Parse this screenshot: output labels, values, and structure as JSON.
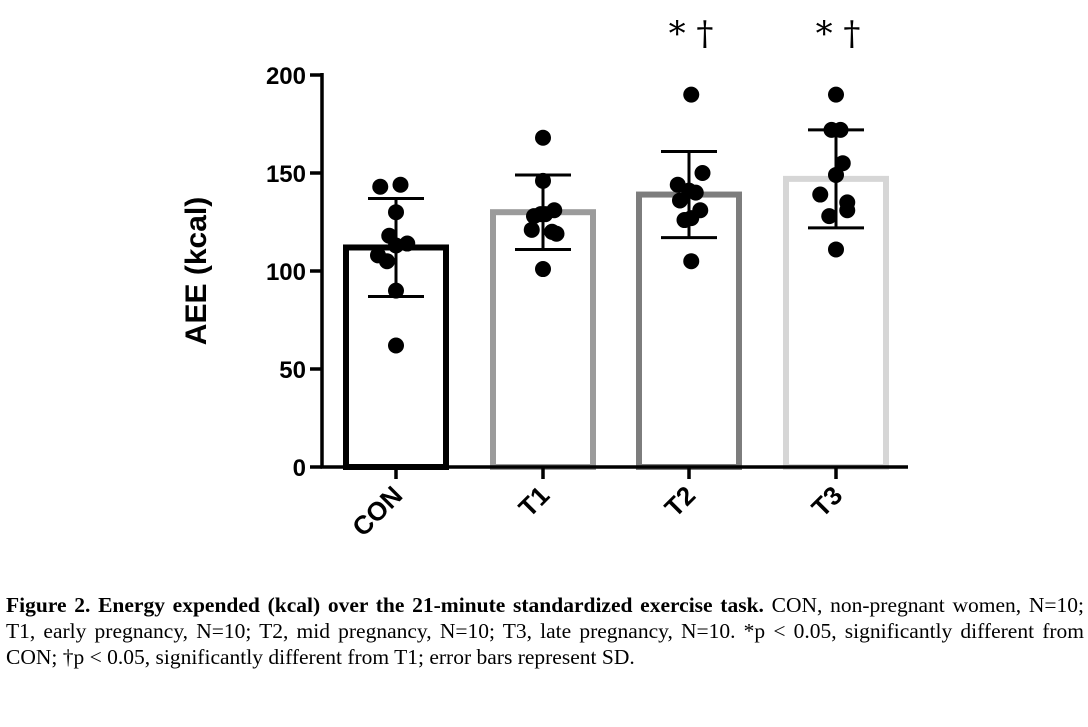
{
  "chart_data": {
    "type": "bar",
    "ylabel": "AEE (kcal)",
    "xlabel": "",
    "ylim": [
      0,
      200
    ],
    "yticks": [
      "0",
      "50",
      "100",
      "150",
      "200"
    ],
    "categories": [
      "CON",
      "T1",
      "T2",
      "T3"
    ],
    "means": [
      112,
      130,
      139,
      147
    ],
    "sd": [
      25,
      19,
      22,
      25
    ],
    "bar_colors": [
      "#000000",
      "#9b9b9b",
      "#7d7d7d",
      "#d6d6d6"
    ],
    "significance": [
      "",
      "",
      "* †",
      "* †"
    ],
    "points": [
      [
        {
          "x": -0.35,
          "y": 143
        },
        {
          "x": 0.1,
          "y": 144
        },
        {
          "x": 0.0,
          "y": 130
        },
        {
          "x": -0.15,
          "y": 118
        },
        {
          "x": 0.0,
          "y": 113
        },
        {
          "x": 0.25,
          "y": 114
        },
        {
          "x": -0.4,
          "y": 108
        },
        {
          "x": -0.2,
          "y": 105
        },
        {
          "x": 0.0,
          "y": 90
        },
        {
          "x": 0.0,
          "y": 62
        }
      ],
      [
        {
          "x": 0.0,
          "y": 168
        },
        {
          "x": 0.0,
          "y": 146
        },
        {
          "x": 0.25,
          "y": 131
        },
        {
          "x": -0.2,
          "y": 128
        },
        {
          "x": -0.05,
          "y": 129
        },
        {
          "x": 0.05,
          "y": 129
        },
        {
          "x": -0.25,
          "y": 121
        },
        {
          "x": 0.2,
          "y": 120
        },
        {
          "x": 0.3,
          "y": 119
        },
        {
          "x": 0.0,
          "y": 101
        }
      ],
      [
        {
          "x": 0.05,
          "y": 190
        },
        {
          "x": -0.25,
          "y": 144
        },
        {
          "x": 0.0,
          "y": 141
        },
        {
          "x": 0.15,
          "y": 140
        },
        {
          "x": 0.3,
          "y": 150
        },
        {
          "x": -0.2,
          "y": 136
        },
        {
          "x": 0.25,
          "y": 131
        },
        {
          "x": 0.05,
          "y": 127
        },
        {
          "x": -0.1,
          "y": 126
        },
        {
          "x": 0.05,
          "y": 105
        }
      ],
      [
        {
          "x": 0.0,
          "y": 190
        },
        {
          "x": -0.1,
          "y": 172
        },
        {
          "x": 0.1,
          "y": 172
        },
        {
          "x": 0.15,
          "y": 155
        },
        {
          "x": 0.0,
          "y": 149
        },
        {
          "x": -0.35,
          "y": 139
        },
        {
          "x": 0.25,
          "y": 135
        },
        {
          "x": 0.25,
          "y": 131
        },
        {
          "x": -0.15,
          "y": 128
        },
        {
          "x": 0.0,
          "y": 111
        }
      ]
    ]
  },
  "caption": {
    "bold": "Figure 2. Energy expended (kcal) over the 21-minute standardized exercise task.",
    "text": " CON, non-pregnant women, N=10; T1, early pregnancy, N=10; T2, mid pregnancy, N=10; T3, late pregnancy, N=10. *p < 0.05, significantly different from CON; †p < 0.05, significantly different from T1; error bars represent SD."
  }
}
